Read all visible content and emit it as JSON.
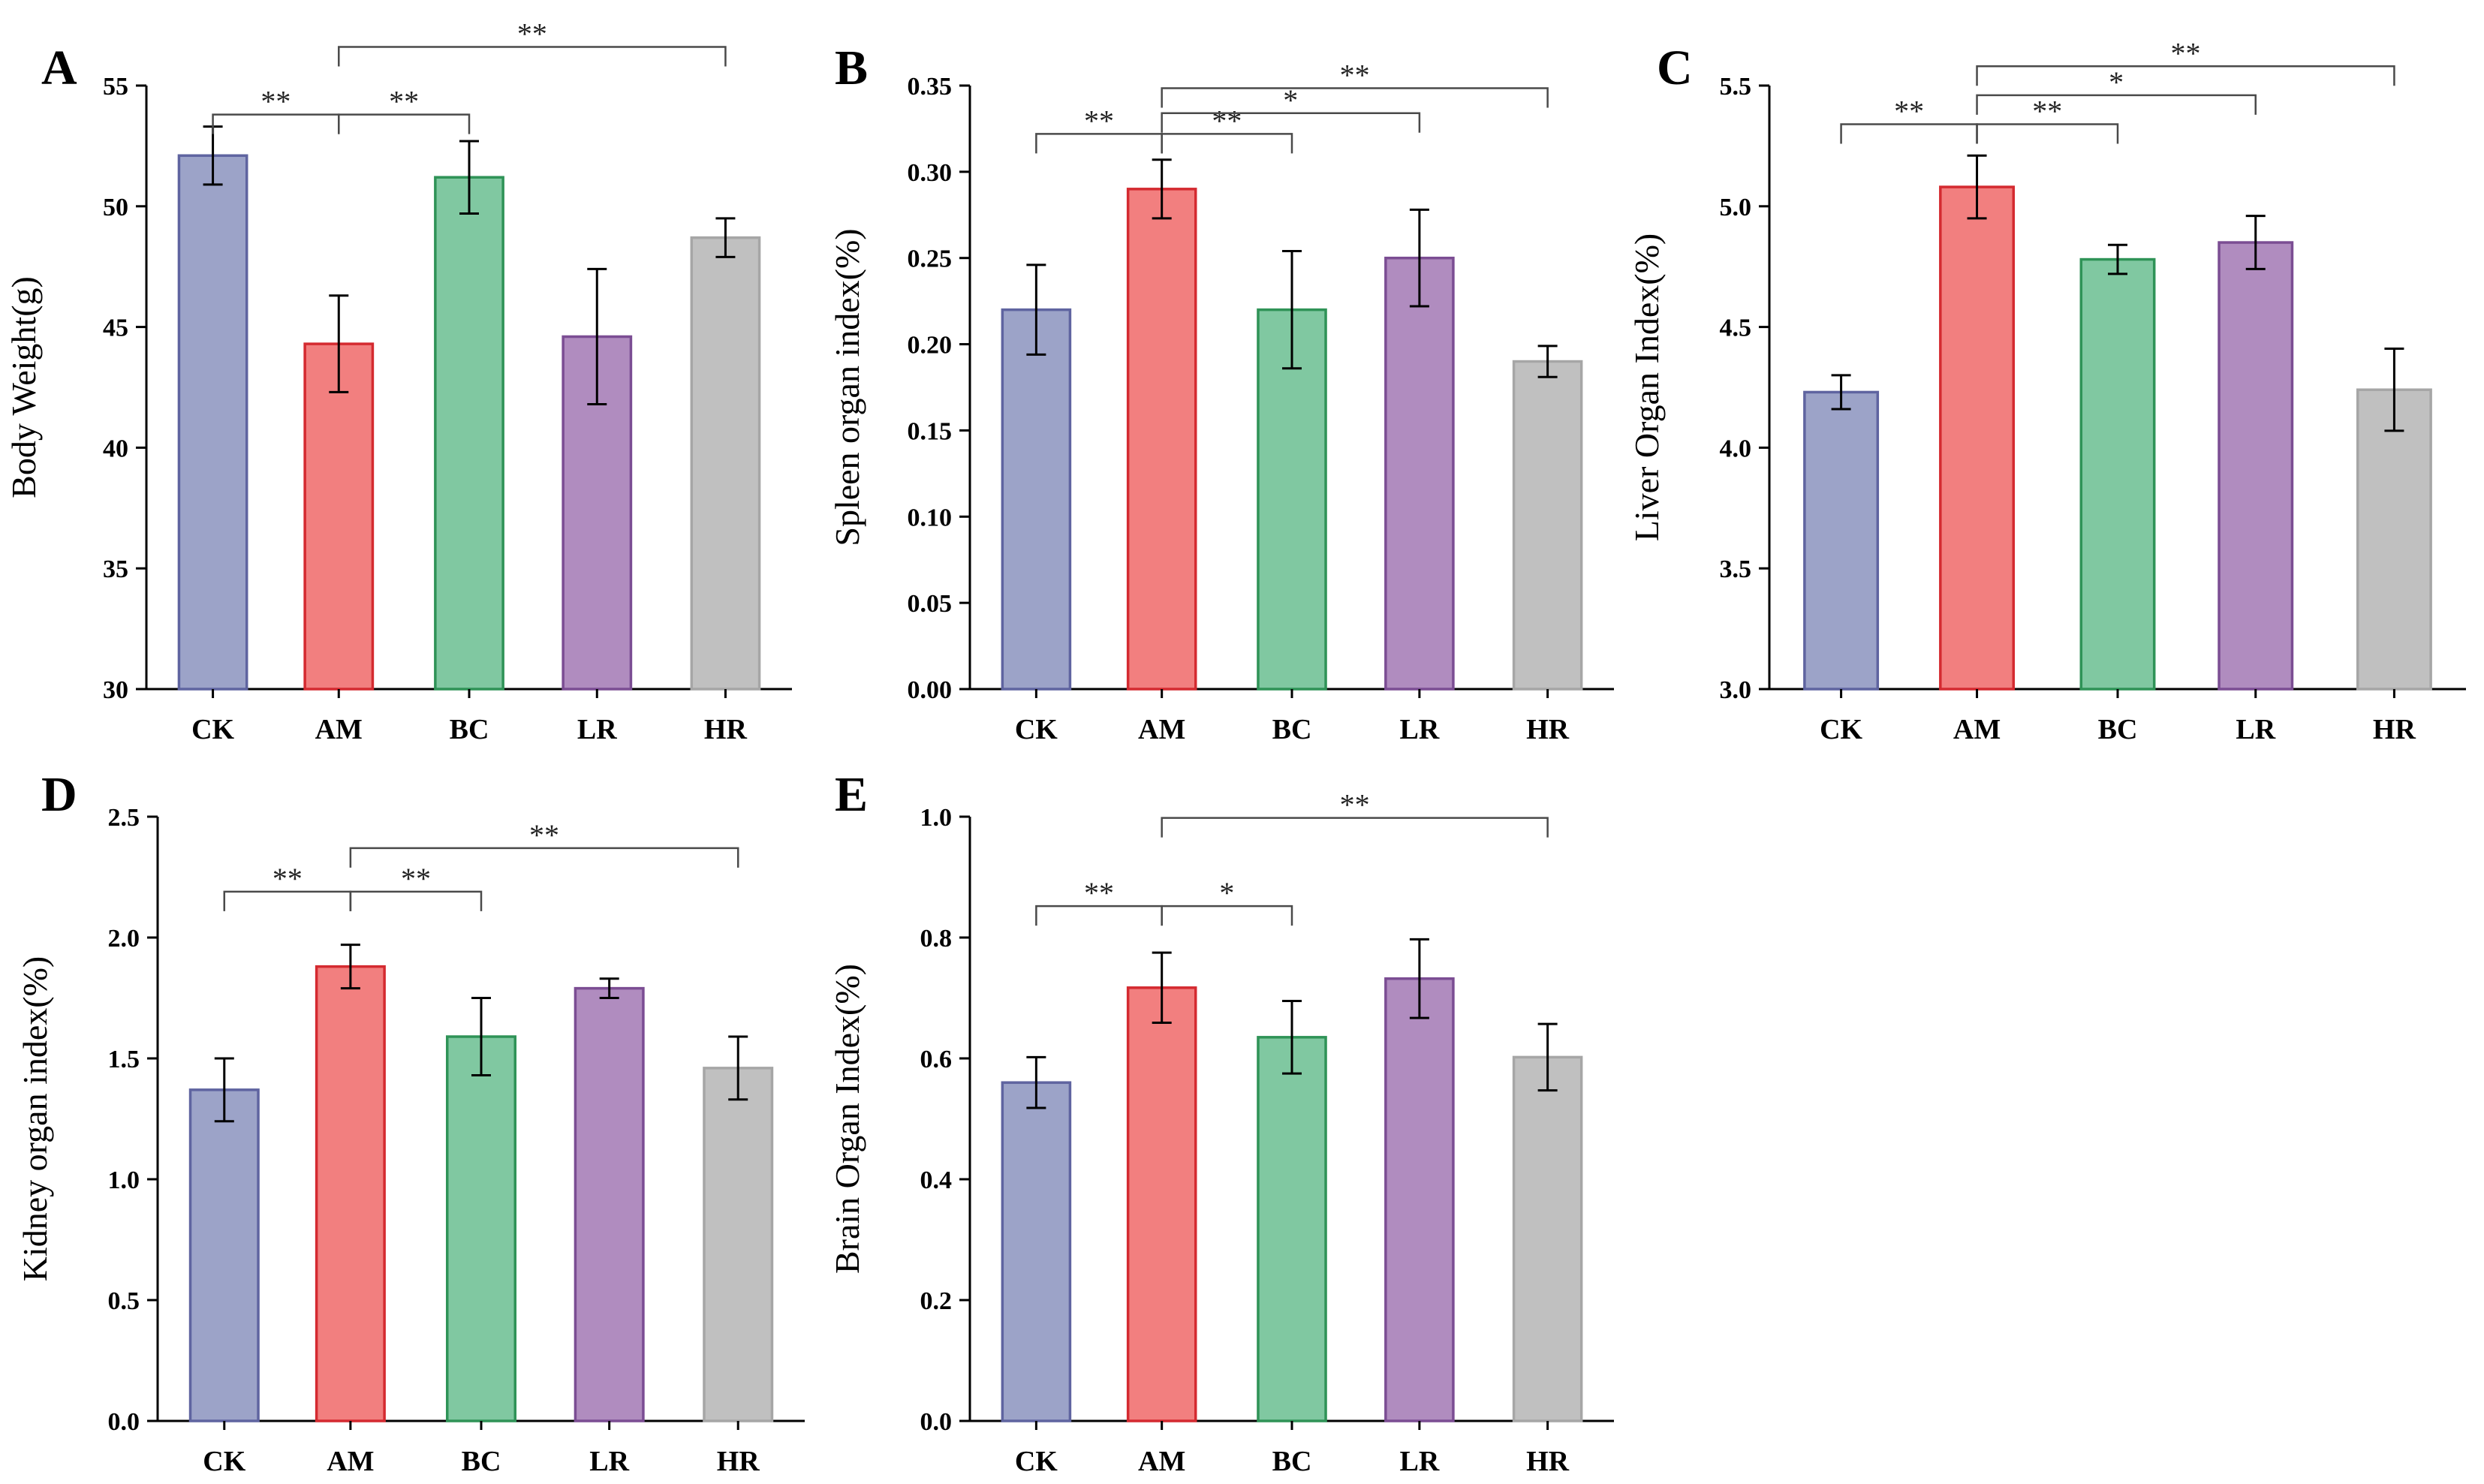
{
  "chart_data": [
    {
      "panel": "A",
      "type": "bar",
      "ylabel": "Body Weight(g)",
      "ylim": [
        30,
        55
      ],
      "yticks": [
        30,
        35,
        40,
        45,
        50,
        55
      ],
      "tick_decimals": 0,
      "categories": [
        "CK",
        "AM",
        "BC",
        "LR",
        "HR"
      ],
      "values": [
        52.1,
        44.3,
        51.2,
        44.6,
        48.7
      ],
      "errors": [
        1.2,
        2.0,
        1.5,
        2.8,
        0.8
      ],
      "significance": [
        {
          "from": "AM",
          "to": "CK",
          "label": "**",
          "y": 53.8
        },
        {
          "from": "AM",
          "to": "BC",
          "label": "**",
          "y": 53.8
        },
        {
          "from": "AM",
          "to": "HR",
          "label": "**",
          "y": 56.6
        }
      ]
    },
    {
      "panel": "B",
      "type": "bar",
      "ylabel": "Spleen organ index(%)",
      "ylim": [
        0,
        0.35
      ],
      "yticks": [
        0,
        0.05,
        0.1,
        0.15,
        0.2,
        0.25,
        0.3,
        0.35
      ],
      "tick_decimals": 2,
      "categories": [
        "CK",
        "AM",
        "BC",
        "LR",
        "HR"
      ],
      "values": [
        0.22,
        0.29,
        0.22,
        0.25,
        0.19
      ],
      "errors": [
        0.026,
        0.017,
        0.034,
        0.028,
        0.009
      ],
      "significance": [
        {
          "from": "AM",
          "to": "CK",
          "label": "**",
          "y": 0.322
        },
        {
          "from": "AM",
          "to": "BC",
          "label": "**",
          "y": 0.322
        },
        {
          "from": "AM",
          "to": "LR",
          "label": "*",
          "y": 0.334
        },
        {
          "from": "AM",
          "to": "HR",
          "label": "**",
          "y": 0.3485
        }
      ]
    },
    {
      "panel": "C",
      "type": "bar",
      "ylabel": "Liver Organ Index(%)",
      "ylim": [
        3.0,
        5.5
      ],
      "yticks": [
        3.0,
        3.5,
        4.0,
        4.5,
        5.0,
        5.5
      ],
      "tick_decimals": 1,
      "categories": [
        "CK",
        "AM",
        "BC",
        "LR",
        "HR"
      ],
      "values": [
        4.23,
        5.08,
        4.78,
        4.85,
        4.24
      ],
      "errors": [
        0.07,
        0.13,
        0.06,
        0.11,
        0.17
      ],
      "significance": [
        {
          "from": "AM",
          "to": "CK",
          "label": "**",
          "y": 5.34
        },
        {
          "from": "AM",
          "to": "BC",
          "label": "**",
          "y": 5.34
        },
        {
          "from": "AM",
          "to": "LR",
          "label": "*",
          "y": 5.46
        },
        {
          "from": "AM",
          "to": "HR",
          "label": "**",
          "y": 5.58
        }
      ]
    },
    {
      "panel": "D",
      "type": "bar",
      "ylabel": "Kidney organ index(%)",
      "ylim": [
        0,
        2.5
      ],
      "yticks": [
        0.0,
        0.5,
        1.0,
        1.5,
        2.0,
        2.5
      ],
      "tick_decimals": 1,
      "categories": [
        "CK",
        "AM",
        "BC",
        "LR",
        "HR"
      ],
      "values": [
        1.37,
        1.88,
        1.59,
        1.79,
        1.46
      ],
      "errors": [
        0.13,
        0.09,
        0.16,
        0.04,
        0.13
      ],
      "significance": [
        {
          "from": "AM",
          "to": "CK",
          "label": "**",
          "y": 2.19
        },
        {
          "from": "AM",
          "to": "BC",
          "label": "**",
          "y": 2.19
        },
        {
          "from": "AM",
          "to": "HR",
          "label": "**",
          "y": 2.37
        }
      ]
    },
    {
      "panel": "E",
      "type": "bar",
      "ylabel": "Brain Organ Index(%)",
      "ylim": [
        0,
        1.0
      ],
      "yticks": [
        0.0,
        0.2,
        0.4,
        0.6,
        0.8,
        1.0
      ],
      "tick_decimals": 1,
      "categories": [
        "CK",
        "AM",
        "BC",
        "LR",
        "HR"
      ],
      "values": [
        0.56,
        0.717,
        0.635,
        0.732,
        0.602
      ],
      "errors": [
        0.042,
        0.058,
        0.06,
        0.065,
        0.055
      ],
      "significance": [
        {
          "from": "AM",
          "to": "CK",
          "label": "**",
          "y": 0.852
        },
        {
          "from": "AM",
          "to": "BC",
          "label": "*",
          "y": 0.852
        },
        {
          "from": "AM",
          "to": "HR",
          "label": "**",
          "y": 0.998
        }
      ]
    }
  ],
  "colors": {
    "CK": {
      "fill": "#9ca3c8",
      "stroke": "#5f64a0"
    },
    "AM": {
      "fill": "#f27f7f",
      "stroke": "#d42a30"
    },
    "BC": {
      "fill": "#80c8a1",
      "stroke": "#2f9357"
    },
    "LR": {
      "fill": "#b08cbf",
      "stroke": "#7b4d93"
    },
    "HR": {
      "fill": "#c0c0c0",
      "stroke": "#a6a6a6"
    }
  }
}
